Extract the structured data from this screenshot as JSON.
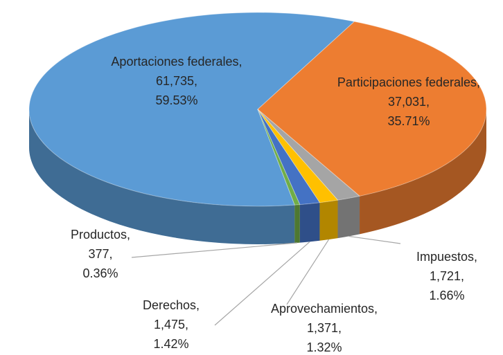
{
  "chart_data": {
    "type": "pie",
    "categories": [
      "Aportaciones federales",
      "Participaciones federales",
      "Impuestos",
      "Aprovechamientos",
      "Derechos",
      "Productos"
    ],
    "values": [
      61735,
      37031,
      1721,
      1371,
      1475,
      377
    ],
    "value_labels": [
      "61,735",
      "37,031",
      "1,721",
      "1,371",
      "1,475",
      "377"
    ],
    "percentages": [
      59.53,
      35.71,
      1.66,
      1.32,
      1.42,
      0.36
    ],
    "percent_labels": [
      "59.53%",
      "35.71%",
      "1.66%",
      "1.32%",
      "1.42%",
      "0.36%"
    ],
    "label_separator": ",",
    "colors": [
      "#5b9bd5",
      "#ed7d31",
      "#a5a5a5",
      "#ffc000",
      "#4472c4",
      "#70ad47"
    ],
    "three_d": true
  }
}
